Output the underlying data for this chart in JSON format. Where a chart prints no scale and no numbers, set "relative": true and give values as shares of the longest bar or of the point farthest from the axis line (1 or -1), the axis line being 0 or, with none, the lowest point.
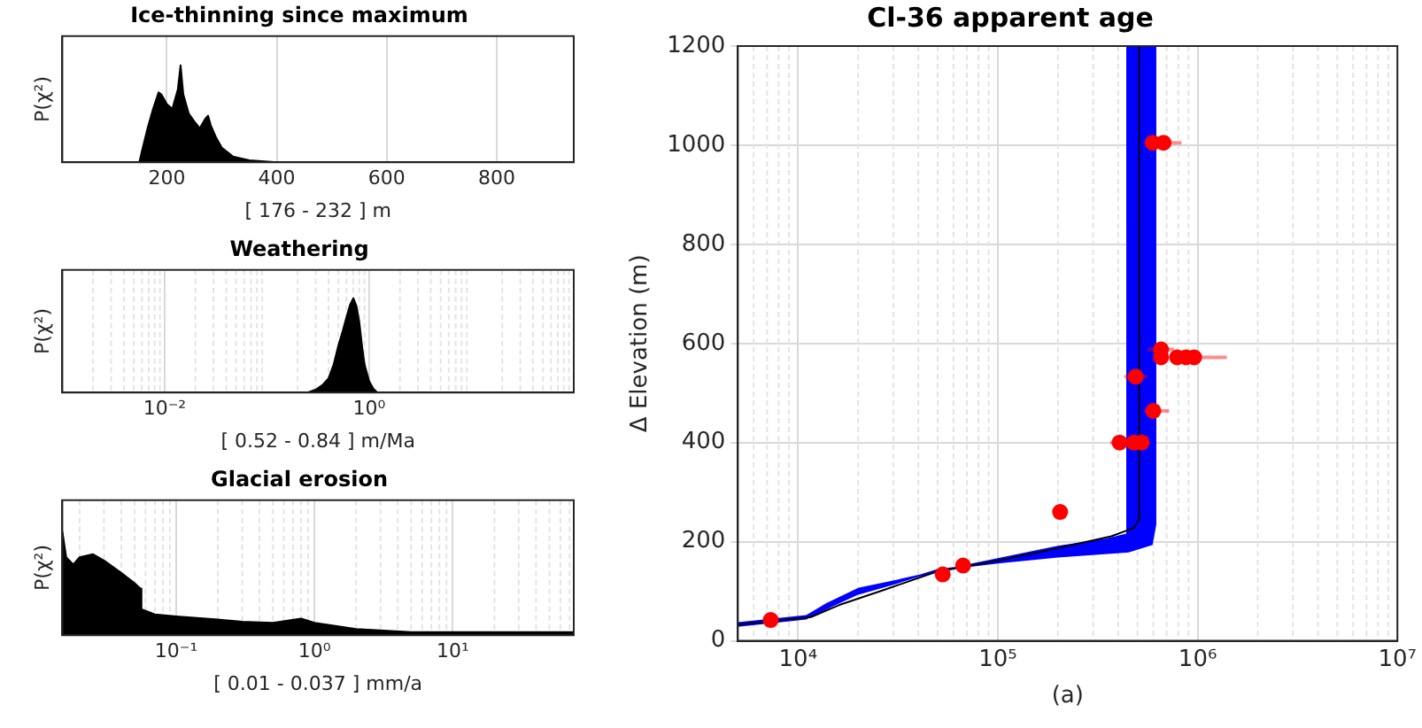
{
  "chart_data": [
    {
      "type": "area",
      "title": "Ice-thinning since maximum",
      "xlabel": "[ 176 - 232 ] m",
      "ylabel": "P(χ²)",
      "relative": true,
      "xlim": [
        10,
        940
      ],
      "xticks": [
        200,
        400,
        600,
        800
      ],
      "grid": "x",
      "x": [
        10,
        150,
        155,
        165,
        175,
        185,
        190,
        200,
        210,
        220,
        225,
        230,
        240,
        250,
        260,
        270,
        275,
        280,
        290,
        300,
        320,
        350,
        400,
        940
      ],
      "values": [
        0,
        0,
        0.12,
        0.35,
        0.55,
        0.72,
        0.7,
        0.6,
        0.55,
        0.75,
        1,
        0.7,
        0.5,
        0.42,
        0.35,
        0.45,
        0.48,
        0.38,
        0.25,
        0.15,
        0.06,
        0.02,
        0,
        0
      ],
      "color": "#000000"
    },
    {
      "type": "area",
      "title": "Weathering",
      "xlabel": "[ 0.52 - 0.84 ] m/Ma",
      "ylabel": "P(χ²)",
      "relative": true,
      "log": "x",
      "xlim": [
        0.001,
        100
      ],
      "xticks": [
        {
          "value": 0.01,
          "label": "10⁻²"
        },
        {
          "value": 1,
          "label": "10⁰"
        }
      ],
      "grid": "x",
      "x": [
        0.001,
        0.25,
        0.3,
        0.35,
        0.4,
        0.45,
        0.5,
        0.55,
        0.6,
        0.65,
        0.7,
        0.75,
        0.8,
        0.85,
        0.9,
        1.0,
        1.1,
        1.2,
        100
      ],
      "values": [
        0,
        0,
        0.03,
        0.08,
        0.15,
        0.3,
        0.5,
        0.65,
        0.8,
        0.93,
        1,
        0.92,
        0.75,
        0.5,
        0.3,
        0.12,
        0.04,
        0,
        0
      ],
      "color": "#000000"
    },
    {
      "type": "area",
      "title": "Glacial erosion",
      "xlabel": "[ 0.01 - 0.037 ] mm/a",
      "ylabel": "P(χ²)",
      "relative": true,
      "log": "x",
      "xlim": [
        0.015,
        75
      ],
      "xticks": [
        {
          "value": 0.1,
          "label": "10⁻¹"
        },
        {
          "value": 1,
          "label": "10⁰"
        },
        {
          "value": 10,
          "label": "10¹"
        }
      ],
      "grid": "x",
      "x": [
        0.015,
        0.016,
        0.018,
        0.02,
        0.025,
        0.03,
        0.04,
        0.05,
        0.055,
        0.056,
        0.07,
        0.1,
        0.2,
        0.3,
        0.5,
        0.8,
        1,
        2,
        5,
        10,
        75
      ],
      "values": [
        1,
        0.75,
        0.68,
        0.75,
        0.78,
        0.72,
        0.6,
        0.5,
        0.45,
        0.25,
        0.2,
        0.18,
        0.15,
        0.13,
        0.12,
        0.16,
        0.12,
        0.06,
        0.03,
        0.03,
        0.03
      ],
      "color": "#000000"
    },
    {
      "type": "line",
      "title": "Cl-36 apparent age",
      "xlabel": "(a)",
      "ylabel": "Δ Elevation (m)",
      "log": "x",
      "xlim": [
        5000,
        10000000
      ],
      "xticks": [
        {
          "value": 10000,
          "label": "10⁴"
        },
        {
          "value": 100000,
          "label": "10⁵"
        },
        {
          "value": 1000000,
          "label": "10⁶"
        },
        {
          "value": 10000000,
          "label": "10⁷"
        }
      ],
      "ylim": [
        0,
        1200
      ],
      "yticks": [
        0,
        200,
        400,
        600,
        800,
        1000,
        1200
      ],
      "grid": true,
      "series": [
        {
          "type": "area",
          "color": "#0000ff",
          "x": [
            5000,
            11000,
            14000,
            20000,
            30000,
            50000,
            100000,
            200000,
            350000,
            444000,
            444000,
            615000,
            615000,
            590000,
            450000,
            200000,
            100000,
            50000,
            30000,
            20000,
            15000,
            11000,
            5000
          ],
          "values": [
            36,
            50,
            75,
            105,
            120,
            140,
            165,
            190,
            205,
            215,
            1200,
            1200,
            235,
            195,
            180,
            170,
            158,
            143,
            115,
            95,
            72,
            45,
            30
          ]
        },
        {
          "type": "line",
          "color": "#000000",
          "x": [
            5000,
            11600,
            16000,
            27000,
            49000,
            100000,
            195000,
            370000,
            480000,
            510000,
            510000
          ],
          "values": [
            33,
            48,
            72,
            103,
            139,
            162,
            186,
            211,
            228,
            245,
            1200
          ]
        },
        {
          "type": "scatter",
          "color": "#ff0000",
          "marker": "circle",
          "x": [
            7300,
            53000,
            67000,
            205000,
            407000,
            480000,
            525000,
            600000,
            490000,
            656000,
            656000,
            790000,
            875000,
            960000,
            596000,
            675000
          ],
          "values": [
            42,
            134,
            152,
            260,
            400,
            400,
            400,
            464,
            533,
            588,
            572,
            572,
            572,
            572,
            1005,
            1005
          ],
          "xerrors": [
            null,
            null,
            null,
            null,
            [
              365000,
              407000
            ],
            null,
            null,
            [
              540000,
              720000
            ],
            [
              430000,
              560000
            ],
            [
              560000,
              760000
            ],
            null,
            null,
            null,
            [
              960000,
              1400000
            ],
            null,
            [
              675000,
              830000
            ]
          ]
        }
      ]
    }
  ]
}
